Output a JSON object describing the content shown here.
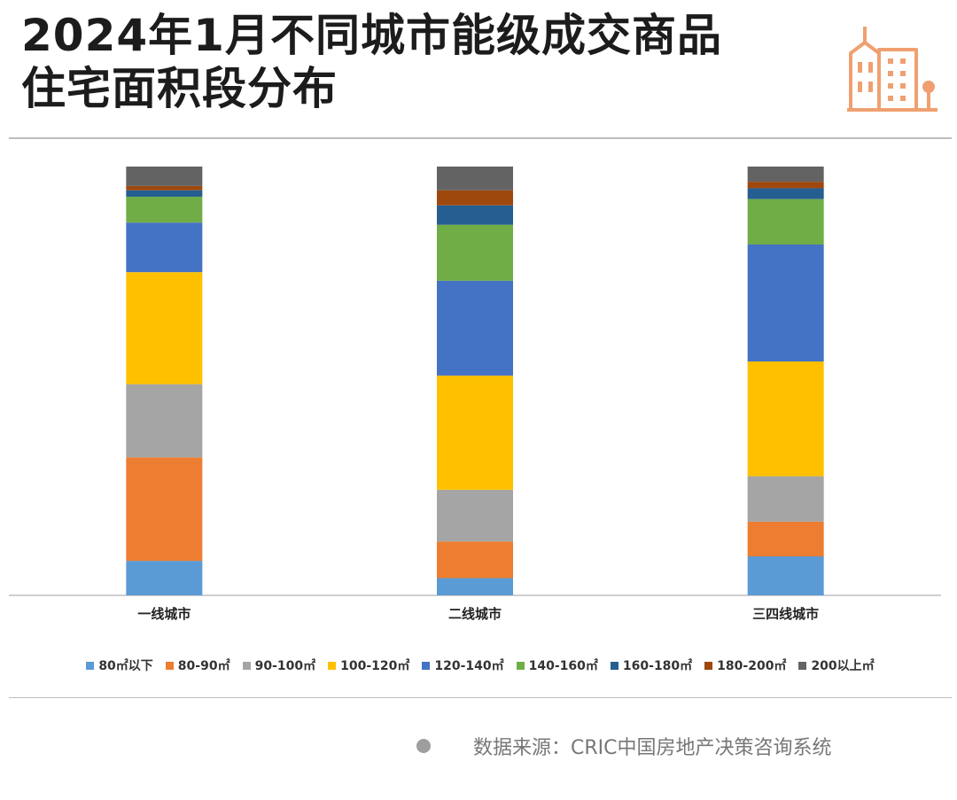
{
  "title": {
    "line1": "2024年1月不同城市能级成交商品",
    "line2": "住宅面积段分布"
  },
  "source_text": "数据来源：CRIC中国房地产决策咨询系统",
  "icons": {
    "logo": "building-icon",
    "source_marker": "dot-icon"
  },
  "colors": {
    "logo": "#f0a070",
    "axis": "#bfbfbf"
  },
  "chart_data": {
    "type": "bar",
    "stacked": true,
    "percent": true,
    "categories": [
      "一线城市",
      "二线城市",
      "三四线城市"
    ],
    "series": [
      {
        "name": "80㎡以下",
        "color": "#5b9bd5",
        "values": [
          8,
          4,
          9
        ]
      },
      {
        "name": "80-90㎡",
        "color": "#ed7d31",
        "values": [
          24,
          8.5,
          8
        ]
      },
      {
        "name": "90-100㎡",
        "color": "#a5a5a5",
        "values": [
          17,
          12,
          10.5
        ]
      },
      {
        "name": "100-120㎡",
        "color": "#ffc000",
        "values": [
          26,
          26.5,
          26.5
        ]
      },
      {
        "name": "120-140㎡",
        "color": "#4472c4",
        "values": [
          11.5,
          22,
          27
        ]
      },
      {
        "name": "140-160㎡",
        "color": "#70ad47",
        "values": [
          6,
          13,
          10.5
        ]
      },
      {
        "name": "160-180㎡",
        "color": "#255e91",
        "values": [
          1.5,
          4.5,
          2.5
        ]
      },
      {
        "name": "180-200㎡",
        "color": "#9e480e",
        "values": [
          1,
          3.5,
          1.5
        ]
      },
      {
        "name": "200以上㎡",
        "color": "#636363",
        "values": [
          4.5,
          5.5,
          3.5
        ]
      }
    ],
    "ylim": [
      0,
      100
    ],
    "grid": false,
    "legend_position": "bottom"
  }
}
